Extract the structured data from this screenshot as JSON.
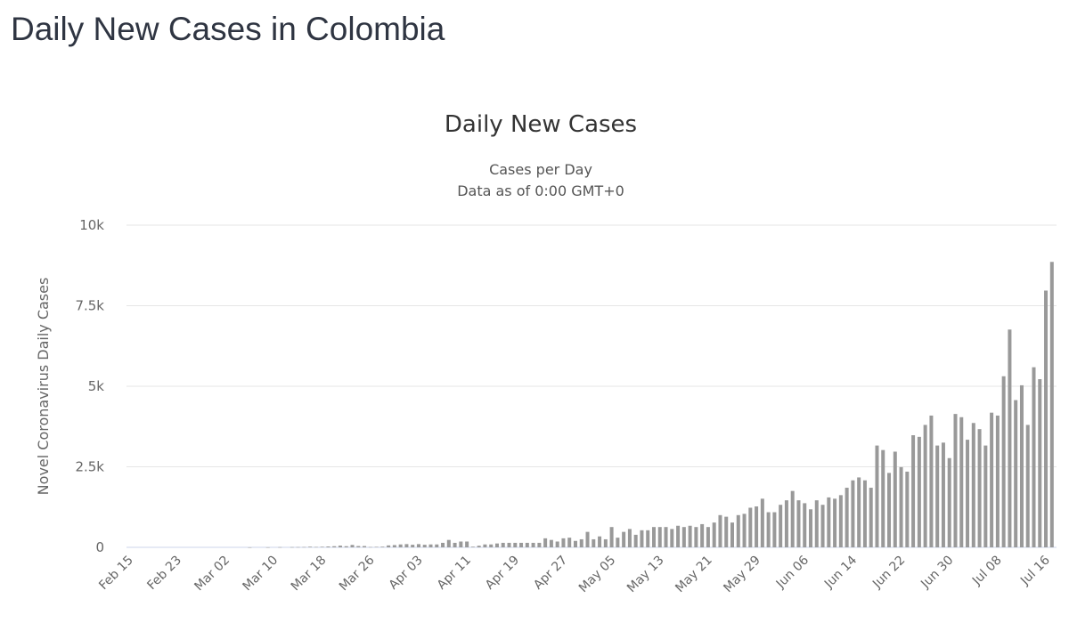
{
  "page": {
    "title": "Daily New Cases in Colombia"
  },
  "chart_data": {
    "type": "bar",
    "title": "Daily New Cases",
    "subtitle": [
      "Cases per Day",
      "Data as of 0:00 GMT+0"
    ],
    "xlabel": "",
    "ylabel": "Novel Coronavirus Daily Cases",
    "ylim": [
      0,
      10000
    ],
    "yticks": [
      {
        "value": 0,
        "label": "0"
      },
      {
        "value": 2500,
        "label": "2.5k"
      },
      {
        "value": 5000,
        "label": "5k"
      },
      {
        "value": 7500,
        "label": "7.5k"
      },
      {
        "value": 10000,
        "label": "10k"
      }
    ],
    "start_date": "Feb 15",
    "end_date": "Jul 17",
    "xtick_labels": [
      "Feb 15",
      "Feb 23",
      "Mar 02",
      "Mar 10",
      "Mar 18",
      "Mar 26",
      "Apr 03",
      "Apr 11",
      "Apr 19",
      "Apr 27",
      "May 05",
      "May 13",
      "May 21",
      "May 29",
      "Jun 06",
      "Jun 14",
      "Jun 22",
      "Jun 30",
      "Jul 08",
      "Jul 16"
    ],
    "xtick_every_days": 8,
    "grid": true,
    "bar_color": "#999999",
    "gridline_color": "#e6e6e6",
    "axis_color": "#ccd6eb",
    "values": [
      0,
      0,
      0,
      0,
      0,
      0,
      0,
      0,
      0,
      0,
      0,
      0,
      0,
      0,
      0,
      0,
      0,
      0,
      0,
      0,
      1,
      0,
      0,
      2,
      0,
      6,
      0,
      7,
      8,
      10,
      20,
      11,
      18,
      27,
      35,
      53,
      35,
      75,
      40,
      40,
      10,
      15,
      20,
      60,
      70,
      90,
      100,
      80,
      100,
      80,
      90,
      90,
      140,
      230,
      140,
      180,
      180,
      20,
      50,
      90,
      90,
      120,
      140,
      140,
      140,
      140,
      140,
      140,
      140,
      280,
      230,
      180,
      280,
      300,
      200,
      250,
      480,
      250,
      340,
      250,
      630,
      300,
      480,
      570,
      390,
      530,
      530,
      630,
      630,
      630,
      570,
      670,
      630,
      670,
      630,
      720,
      630,
      770,
      1000,
      950,
      770,
      1000,
      1040,
      1230,
      1270,
      1510,
      1090,
      1090,
      1320,
      1460,
      1750,
      1460,
      1370,
      1180,
      1460,
      1320,
      1550,
      1510,
      1620,
      1850,
      2080,
      2170,
      2080,
      1850,
      3160,
      3020,
      2310,
      2970,
      2490,
      2350,
      3480,
      3430,
      3800,
      4090,
      3160,
      3250,
      2770,
      4140,
      4040,
      3340,
      3860,
      3670,
      3160,
      4180,
      4090,
      5310,
      6760,
      4570,
      5030,
      3800,
      5590,
      5220,
      7970,
      8860
    ]
  }
}
